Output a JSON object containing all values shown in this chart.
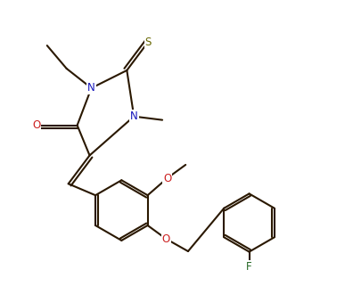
{
  "bg_color": "#ffffff",
  "bond_color": "#2a1800",
  "N_color": "#1515bb",
  "O_color": "#cc2020",
  "S_color": "#666600",
  "F_color": "#226622",
  "lw": 1.5,
  "fs": 8.5,
  "xlim": [
    0,
    9
  ],
  "ylim": [
    0,
    8
  ]
}
